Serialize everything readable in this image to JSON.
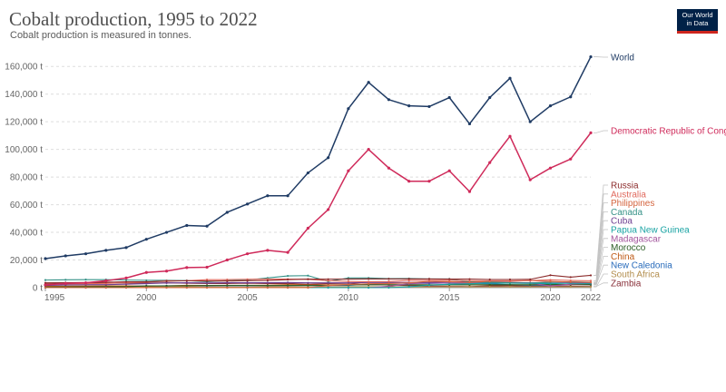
{
  "header": {
    "title": "Cobalt production, 1995 to 2022",
    "subtitle": "Cobalt production is measured in tonnes."
  },
  "logo": {
    "line1": "Our World",
    "line2": "in Data"
  },
  "chart_data": {
    "type": "line",
    "title": "Cobalt production, 1995 to 2022",
    "subtitle": "Cobalt production is measured in tonnes.",
    "xlabel": "",
    "ylabel": "",
    "xlim": [
      1995,
      2022
    ],
    "ylim": [
      0,
      170000
    ],
    "y_ticks": [
      0,
      20000,
      40000,
      60000,
      80000,
      100000,
      120000,
      140000,
      160000
    ],
    "y_tick_labels": [
      "0 t",
      "20,000 t",
      "40,000 t",
      "60,000 t",
      "80,000 t",
      "100,000 t",
      "120,000 t",
      "140,000 t",
      "160,000 t"
    ],
    "x_ticks": [
      1995,
      2000,
      2005,
      2010,
      2015,
      2020,
      2022
    ],
    "x_tick_labels": [
      "1995",
      "2000",
      "2005",
      "2010",
      "2015",
      "2020",
      "2022"
    ],
    "grid": true,
    "legend": "right-of-lines",
    "x": [
      1995,
      1996,
      1997,
      1998,
      1999,
      2000,
      2001,
      2002,
      2003,
      2004,
      2005,
      2006,
      2007,
      2008,
      2009,
      2010,
      2011,
      2012,
      2013,
      2014,
      2015,
      2016,
      2017,
      2018,
      2019,
      2020,
      2021,
      2022
    ],
    "series": [
      {
        "name": "World",
        "color": "#1f3b64",
        "values": [
          21000,
          23000,
          24500,
          27000,
          29000,
          35000,
          40000,
          45000,
          44500,
          54500,
          60500,
          66500,
          66500,
          83000,
          94000,
          129500,
          148500,
          136000,
          131500,
          131000,
          137500,
          118500,
          137500,
          151500,
          120000,
          131500,
          138000,
          167000
        ]
      },
      {
        "name": "Democratic Republic of Congo",
        "color": "#cf2a5a",
        "values": [
          2000,
          3000,
          3500,
          5000,
          7000,
          11000,
          12000,
          14500,
          14800,
          20000,
          24500,
          27000,
          25500,
          43000,
          56500,
          84500,
          100000,
          86500,
          77000,
          77000,
          84500,
          69500,
          90500,
          109500,
          78000,
          86500,
          93000,
          112000
        ]
      },
      {
        "name": "Russia",
        "color": "#8c2b2b",
        "values": [
          3500,
          3600,
          3700,
          4000,
          4200,
          4200,
          4600,
          5000,
          4800,
          4800,
          5000,
          5200,
          5800,
          6200,
          6100,
          6200,
          6300,
          6300,
          6300,
          6300,
          6200,
          6200,
          5900,
          5900,
          6000,
          9000,
          7600,
          8900
        ]
      },
      {
        "name": "Australia",
        "color": "#e0685c",
        "values": [
          2500,
          2700,
          2900,
          3100,
          3600,
          4000,
          5000,
          5000,
          5800,
          5800,
          6000,
          6200,
          6200,
          6000,
          5000,
          4500,
          4300,
          4500,
          5200,
          5200,
          5400,
          5000,
          5000,
          5000,
          5100,
          5600,
          5200,
          5000
        ]
      },
      {
        "name": "Philippines",
        "color": "#d4653f",
        "values": [
          0,
          0,
          0,
          0,
          0,
          0,
          0,
          0,
          0,
          0,
          0,
          0,
          0,
          0,
          1500,
          2300,
          2800,
          3000,
          3500,
          4600,
          4300,
          3800,
          4600,
          4600,
          5100,
          4500,
          4100,
          3800
        ]
      },
      {
        "name": "Canada",
        "color": "#359187",
        "values": [
          5500,
          5700,
          5800,
          5800,
          5500,
          5300,
          5300,
          5100,
          4300,
          5100,
          5500,
          7000,
          8500,
          8700,
          4500,
          7000,
          7000,
          6500,
          6600,
          6300,
          6300,
          4300,
          3900,
          3500,
          3300,
          3900,
          4300,
          3900
        ]
      },
      {
        "name": "Cuba",
        "color": "#6d3e91",
        "values": [
          1600,
          2000,
          2200,
          2200,
          2500,
          2900,
          3400,
          3600,
          3400,
          3600,
          3600,
          3600,
          3700,
          3500,
          3500,
          3500,
          3700,
          3700,
          3700,
          3700,
          4200,
          4200,
          3800,
          3700,
          3500,
          3800,
          3800,
          3600
        ]
      },
      {
        "name": "Papua New Guinea",
        "color": "#18a3a3",
        "values": [
          0,
          0,
          0,
          0,
          0,
          0,
          0,
          0,
          0,
          0,
          0,
          0,
          0,
          0,
          0,
          0,
          0,
          0,
          600,
          1800,
          2500,
          2800,
          3300,
          3200,
          3100,
          2900,
          3200,
          3000
        ]
      },
      {
        "name": "Madagascar",
        "color": "#a2559c",
        "values": [
          0,
          0,
          0,
          0,
          0,
          0,
          0,
          0,
          0,
          0,
          0,
          0,
          0,
          0,
          0,
          0,
          0,
          1000,
          2800,
          3500,
          3400,
          3300,
          3600,
          3500,
          3400,
          1200,
          2600,
          3000
        ]
      },
      {
        "name": "Morocco",
        "color": "#2c5e26",
        "values": [
          400,
          500,
          600,
          700,
          700,
          1300,
          1300,
          1400,
          1500,
          1600,
          1600,
          1500,
          1600,
          1600,
          1600,
          2000,
          2100,
          2100,
          2100,
          2000,
          2100,
          2100,
          2100,
          2100,
          2100,
          2300,
          2300,
          2300
        ]
      },
      {
        "name": "China",
        "color": "#be5915",
        "values": [
          1000,
          1000,
          1200,
          1300,
          1300,
          1000,
          1300,
          1700,
          1600,
          1700,
          1700,
          1800,
          2200,
          2000,
          2000,
          2200,
          2000,
          2000,
          2000,
          2000,
          2000,
          2000,
          2000,
          2000,
          2000,
          2200,
          2200,
          2200
        ]
      },
      {
        "name": "New Caledonia",
        "color": "#286bbb",
        "values": [
          1000,
          1000,
          1100,
          1200,
          1100,
          1200,
          1400,
          1400,
          1300,
          1400,
          1400,
          1500,
          1500,
          1600,
          1500,
          1700,
          2500,
          3200,
          3200,
          3100,
          3400,
          3300,
          2800,
          2100,
          1700,
          1600,
          2200,
          2000
        ]
      },
      {
        "name": "South Africa",
        "color": "#b38e4e",
        "values": [
          400,
          400,
          400,
          450,
          450,
          500,
          550,
          600,
          500,
          500,
          500,
          600,
          600,
          500,
          500,
          700,
          600,
          600,
          600,
          600,
          600,
          600,
          600,
          600,
          600,
          600,
          600,
          600
        ]
      },
      {
        "name": "Zambia",
        "color": "#883039",
        "values": [
          3000,
          3200,
          3000,
          3500,
          3400,
          3300,
          3500,
          3200,
          3000,
          3000,
          3200,
          3000,
          3100,
          2400,
          3000,
          3200,
          2300,
          1900,
          1500,
          1300,
          900,
          800,
          1300,
          1400,
          1200,
          1200,
          1000,
          900
        ]
      }
    ]
  }
}
